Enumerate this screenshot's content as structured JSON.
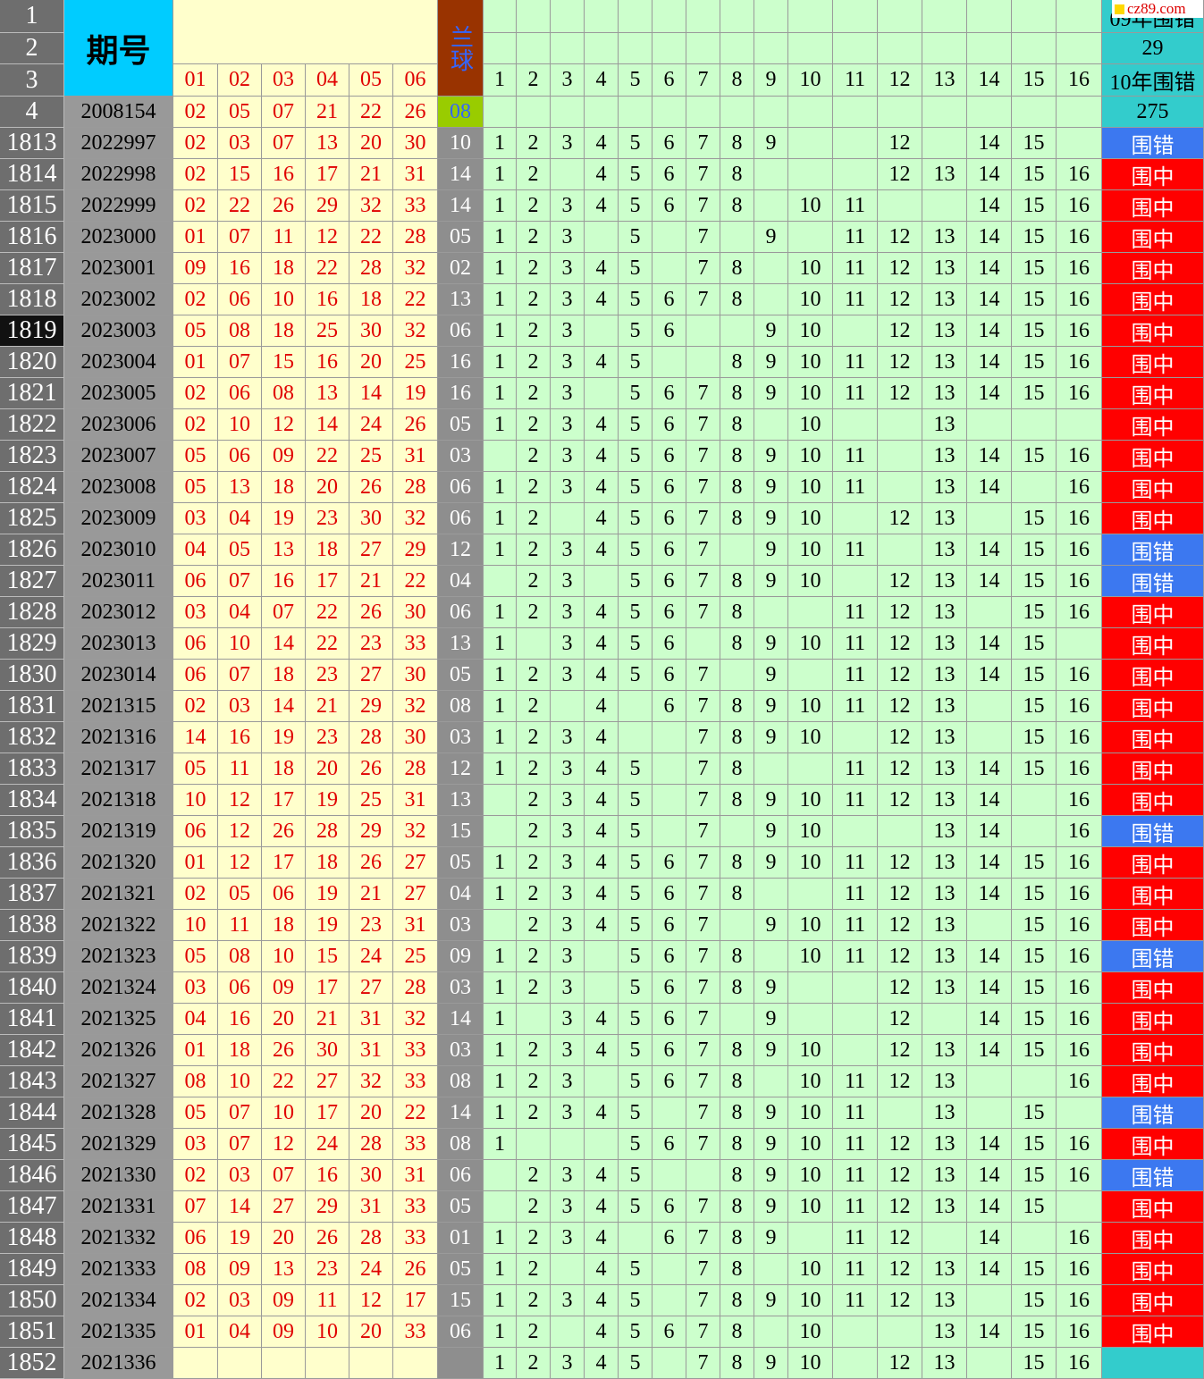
{
  "header": {
    "row_numbers": [
      "1",
      "2",
      "3",
      "4"
    ],
    "issue_label": "期号",
    "red_labels": [
      "01",
      "02",
      "03",
      "04",
      "05",
      "06"
    ],
    "blue_label": "兰球",
    "column_labels": [
      1,
      2,
      3,
      4,
      5,
      6,
      7,
      8,
      9,
      10,
      11,
      12,
      13,
      14,
      15,
      16
    ],
    "stats": [
      "09年围错",
      "29",
      "10年围错",
      "275"
    ],
    "watermark": "cz89.com",
    "ref_row": {
      "issue": "2008154",
      "reds": [
        "02",
        "05",
        "07",
        "21",
        "22",
        "26"
      ],
      "blue": "08"
    }
  },
  "rows": [
    {
      "row": "1813",
      "issue": "2022997",
      "reds": [
        "02",
        "03",
        "07",
        "13",
        "20",
        "30"
      ],
      "blue": "10",
      "grid": [
        1,
        2,
        3,
        4,
        5,
        6,
        7,
        8,
        9,
        null,
        null,
        12,
        null,
        14,
        15,
        null
      ],
      "result": "围错"
    },
    {
      "row": "1814",
      "issue": "2022998",
      "reds": [
        "02",
        "15",
        "16",
        "17",
        "21",
        "31"
      ],
      "blue": "14",
      "grid": [
        1,
        2,
        null,
        4,
        5,
        6,
        7,
        8,
        null,
        null,
        null,
        12,
        13,
        14,
        15,
        16
      ],
      "result": "围中"
    },
    {
      "row": "1815",
      "issue": "2022999",
      "reds": [
        "02",
        "22",
        "26",
        "29",
        "32",
        "33"
      ],
      "blue": "14",
      "grid": [
        1,
        2,
        3,
        4,
        5,
        6,
        7,
        8,
        null,
        10,
        11,
        null,
        null,
        14,
        15,
        16
      ],
      "result": "围中"
    },
    {
      "row": "1816",
      "issue": "2023000",
      "reds": [
        "01",
        "07",
        "11",
        "12",
        "22",
        "28"
      ],
      "blue": "05",
      "grid": [
        1,
        2,
        3,
        null,
        5,
        null,
        7,
        null,
        9,
        null,
        11,
        12,
        13,
        14,
        15,
        16
      ],
      "result": "围中"
    },
    {
      "row": "1817",
      "issue": "2023001",
      "reds": [
        "09",
        "16",
        "18",
        "22",
        "28",
        "32"
      ],
      "blue": "02",
      "grid": [
        1,
        2,
        3,
        4,
        5,
        null,
        7,
        8,
        null,
        10,
        11,
        12,
        13,
        14,
        15,
        16
      ],
      "result": "围中"
    },
    {
      "row": "1818",
      "issue": "2023002",
      "reds": [
        "02",
        "06",
        "10",
        "16",
        "18",
        "22"
      ],
      "blue": "13",
      "grid": [
        1,
        2,
        3,
        4,
        5,
        6,
        7,
        8,
        null,
        10,
        11,
        12,
        13,
        14,
        15,
        16
      ],
      "result": "围中"
    },
    {
      "row": "1819",
      "issue": "2023003",
      "reds": [
        "05",
        "08",
        "18",
        "25",
        "30",
        "32"
      ],
      "blue": "06",
      "grid": [
        1,
        2,
        3,
        null,
        5,
        6,
        null,
        null,
        9,
        10,
        null,
        12,
        13,
        14,
        15,
        16
      ],
      "result": "围中"
    },
    {
      "row": "1820",
      "issue": "2023004",
      "reds": [
        "01",
        "07",
        "15",
        "16",
        "20",
        "25"
      ],
      "blue": "16",
      "grid": [
        1,
        2,
        3,
        4,
        5,
        null,
        null,
        8,
        9,
        10,
        11,
        12,
        13,
        14,
        15,
        16
      ],
      "result": "围中"
    },
    {
      "row": "1821",
      "issue": "2023005",
      "reds": [
        "02",
        "06",
        "08",
        "13",
        "14",
        "19"
      ],
      "blue": "16",
      "grid": [
        1,
        2,
        3,
        null,
        5,
        6,
        7,
        8,
        9,
        10,
        11,
        12,
        13,
        14,
        15,
        16
      ],
      "result": "围中"
    },
    {
      "row": "1822",
      "issue": "2023006",
      "reds": [
        "02",
        "10",
        "12",
        "14",
        "24",
        "26"
      ],
      "blue": "05",
      "grid": [
        1,
        2,
        3,
        4,
        5,
        6,
        7,
        8,
        null,
        10,
        null,
        null,
        13,
        null,
        null,
        null
      ],
      "result": "围中"
    },
    {
      "row": "1823",
      "issue": "2023007",
      "reds": [
        "05",
        "06",
        "09",
        "22",
        "25",
        "31"
      ],
      "blue": "03",
      "grid": [
        null,
        2,
        3,
        4,
        5,
        6,
        7,
        8,
        9,
        10,
        11,
        null,
        13,
        14,
        15,
        16
      ],
      "result": "围中"
    },
    {
      "row": "1824",
      "issue": "2023008",
      "reds": [
        "05",
        "13",
        "18",
        "20",
        "26",
        "28"
      ],
      "blue": "06",
      "grid": [
        1,
        2,
        3,
        4,
        5,
        6,
        7,
        8,
        9,
        10,
        11,
        null,
        13,
        14,
        null,
        16
      ],
      "result": "围中"
    },
    {
      "row": "1825",
      "issue": "2023009",
      "reds": [
        "03",
        "04",
        "19",
        "23",
        "30",
        "32"
      ],
      "blue": "06",
      "grid": [
        1,
        2,
        null,
        4,
        5,
        6,
        7,
        8,
        9,
        10,
        null,
        12,
        13,
        null,
        15,
        16
      ],
      "result": "围中"
    },
    {
      "row": "1826",
      "issue": "2023010",
      "reds": [
        "04",
        "05",
        "13",
        "18",
        "27",
        "29"
      ],
      "blue": "12",
      "grid": [
        1,
        2,
        3,
        4,
        5,
        6,
        7,
        null,
        9,
        10,
        11,
        null,
        13,
        14,
        15,
        16
      ],
      "result": "围错"
    },
    {
      "row": "1827",
      "issue": "2023011",
      "reds": [
        "06",
        "07",
        "16",
        "17",
        "21",
        "22"
      ],
      "blue": "04",
      "grid": [
        null,
        2,
        3,
        null,
        5,
        6,
        7,
        8,
        9,
        10,
        null,
        12,
        13,
        14,
        15,
        16
      ],
      "result": "围错"
    },
    {
      "row": "1828",
      "issue": "2023012",
      "reds": [
        "03",
        "04",
        "07",
        "22",
        "26",
        "30"
      ],
      "blue": "06",
      "grid": [
        1,
        2,
        3,
        4,
        5,
        6,
        7,
        8,
        null,
        null,
        11,
        12,
        13,
        null,
        15,
        16
      ],
      "result": "围中"
    },
    {
      "row": "1829",
      "issue": "2023013",
      "reds": [
        "06",
        "10",
        "14",
        "22",
        "23",
        "33"
      ],
      "blue": "13",
      "grid": [
        1,
        null,
        3,
        4,
        5,
        6,
        null,
        8,
        9,
        10,
        11,
        12,
        13,
        14,
        15,
        null
      ],
      "result": "围中"
    },
    {
      "row": "1830",
      "issue": "2023014",
      "reds": [
        "06",
        "07",
        "18",
        "23",
        "27",
        "30"
      ],
      "blue": "05",
      "grid": [
        1,
        2,
        3,
        4,
        5,
        6,
        7,
        null,
        9,
        null,
        11,
        12,
        13,
        14,
        15,
        16
      ],
      "result": "围中"
    },
    {
      "row": "1831",
      "issue": "2021315",
      "reds": [
        "02",
        "03",
        "14",
        "21",
        "29",
        "32"
      ],
      "blue": "08",
      "grid": [
        1,
        2,
        null,
        4,
        null,
        6,
        7,
        8,
        9,
        10,
        11,
        12,
        13,
        null,
        15,
        16
      ],
      "result": "围中"
    },
    {
      "row": "1832",
      "issue": "2021316",
      "reds": [
        "14",
        "16",
        "19",
        "23",
        "28",
        "30"
      ],
      "blue": "03",
      "grid": [
        1,
        2,
        3,
        4,
        null,
        null,
        7,
        8,
        9,
        10,
        null,
        12,
        13,
        null,
        15,
        16
      ],
      "result": "围中"
    },
    {
      "row": "1833",
      "issue": "2021317",
      "reds": [
        "05",
        "11",
        "18",
        "20",
        "26",
        "28"
      ],
      "blue": "12",
      "grid": [
        1,
        2,
        3,
        4,
        5,
        null,
        7,
        8,
        null,
        null,
        11,
        12,
        13,
        14,
        15,
        16
      ],
      "result": "围中"
    },
    {
      "row": "1834",
      "issue": "2021318",
      "reds": [
        "10",
        "12",
        "17",
        "19",
        "25",
        "31"
      ],
      "blue": "13",
      "grid": [
        null,
        2,
        3,
        4,
        5,
        null,
        7,
        8,
        9,
        10,
        11,
        12,
        13,
        14,
        null,
        16
      ],
      "result": "围中"
    },
    {
      "row": "1835",
      "issue": "2021319",
      "reds": [
        "06",
        "12",
        "26",
        "28",
        "29",
        "32"
      ],
      "blue": "15",
      "grid": [
        null,
        2,
        3,
        4,
        5,
        null,
        7,
        null,
        9,
        10,
        null,
        null,
        13,
        14,
        null,
        16
      ],
      "result": "围错"
    },
    {
      "row": "1836",
      "issue": "2021320",
      "reds": [
        "01",
        "12",
        "17",
        "18",
        "26",
        "27"
      ],
      "blue": "05",
      "grid": [
        1,
        2,
        3,
        4,
        5,
        6,
        7,
        8,
        9,
        10,
        11,
        12,
        13,
        14,
        15,
        16
      ],
      "result": "围中"
    },
    {
      "row": "1837",
      "issue": "2021321",
      "reds": [
        "02",
        "05",
        "06",
        "19",
        "21",
        "27"
      ],
      "blue": "04",
      "grid": [
        1,
        2,
        3,
        4,
        5,
        6,
        7,
        8,
        null,
        null,
        11,
        12,
        13,
        14,
        15,
        16
      ],
      "result": "围中"
    },
    {
      "row": "1838",
      "issue": "2021322",
      "reds": [
        "10",
        "11",
        "18",
        "19",
        "23",
        "31"
      ],
      "blue": "03",
      "grid": [
        null,
        2,
        3,
        4,
        5,
        6,
        7,
        null,
        9,
        10,
        11,
        12,
        13,
        null,
        15,
        16
      ],
      "result": "围中"
    },
    {
      "row": "1839",
      "issue": "2021323",
      "reds": [
        "05",
        "08",
        "10",
        "15",
        "24",
        "25"
      ],
      "blue": "09",
      "grid": [
        1,
        2,
        3,
        null,
        5,
        6,
        7,
        8,
        null,
        10,
        11,
        12,
        13,
        14,
        15,
        16
      ],
      "result": "围错"
    },
    {
      "row": "1840",
      "issue": "2021324",
      "reds": [
        "03",
        "06",
        "09",
        "17",
        "27",
        "28"
      ],
      "blue": "03",
      "grid": [
        1,
        2,
        3,
        null,
        5,
        6,
        7,
        8,
        9,
        null,
        null,
        12,
        13,
        14,
        15,
        16
      ],
      "result": "围中"
    },
    {
      "row": "1841",
      "issue": "2021325",
      "reds": [
        "04",
        "16",
        "20",
        "21",
        "31",
        "32"
      ],
      "blue": "14",
      "grid": [
        1,
        null,
        3,
        4,
        5,
        6,
        7,
        null,
        9,
        null,
        null,
        12,
        null,
        14,
        15,
        16
      ],
      "result": "围中"
    },
    {
      "row": "1842",
      "issue": "2021326",
      "reds": [
        "01",
        "18",
        "26",
        "30",
        "31",
        "33"
      ],
      "blue": "03",
      "grid": [
        1,
        2,
        3,
        4,
        5,
        6,
        7,
        8,
        9,
        10,
        null,
        12,
        13,
        14,
        15,
        16
      ],
      "result": "围中"
    },
    {
      "row": "1843",
      "issue": "2021327",
      "reds": [
        "08",
        "10",
        "22",
        "27",
        "32",
        "33"
      ],
      "blue": "08",
      "grid": [
        1,
        2,
        3,
        null,
        5,
        6,
        7,
        8,
        null,
        10,
        11,
        12,
        13,
        null,
        null,
        16
      ],
      "result": "围中"
    },
    {
      "row": "1844",
      "issue": "2021328",
      "reds": [
        "05",
        "07",
        "10",
        "17",
        "20",
        "22"
      ],
      "blue": "14",
      "grid": [
        1,
        2,
        3,
        4,
        5,
        null,
        7,
        8,
        9,
        10,
        11,
        null,
        13,
        null,
        15,
        null
      ],
      "result": "围错"
    },
    {
      "row": "1845",
      "issue": "2021329",
      "reds": [
        "03",
        "07",
        "12",
        "24",
        "28",
        "33"
      ],
      "blue": "08",
      "grid": [
        1,
        null,
        null,
        null,
        5,
        6,
        7,
        8,
        9,
        10,
        11,
        12,
        13,
        14,
        15,
        16
      ],
      "result": "围中"
    },
    {
      "row": "1846",
      "issue": "2021330",
      "reds": [
        "02",
        "03",
        "07",
        "16",
        "30",
        "31"
      ],
      "blue": "06",
      "grid": [
        null,
        2,
        3,
        4,
        5,
        null,
        null,
        8,
        9,
        10,
        11,
        12,
        13,
        14,
        15,
        16
      ],
      "result": "围错"
    },
    {
      "row": "1847",
      "issue": "2021331",
      "reds": [
        "07",
        "14",
        "27",
        "29",
        "31",
        "33"
      ],
      "blue": "05",
      "grid": [
        null,
        2,
        3,
        4,
        5,
        6,
        7,
        8,
        9,
        10,
        11,
        12,
        13,
        14,
        15,
        null
      ],
      "result": "围中"
    },
    {
      "row": "1848",
      "issue": "2021332",
      "reds": [
        "06",
        "19",
        "20",
        "26",
        "28",
        "33"
      ],
      "blue": "01",
      "grid": [
        1,
        2,
        3,
        4,
        null,
        6,
        7,
        8,
        9,
        null,
        11,
        12,
        null,
        14,
        null,
        16
      ],
      "result": "围中"
    },
    {
      "row": "1849",
      "issue": "2021333",
      "reds": [
        "08",
        "09",
        "13",
        "23",
        "24",
        "26"
      ],
      "blue": "05",
      "grid": [
        1,
        2,
        null,
        4,
        5,
        null,
        7,
        8,
        null,
        10,
        11,
        12,
        13,
        14,
        15,
        16
      ],
      "result": "围中"
    },
    {
      "row": "1850",
      "issue": "2021334",
      "reds": [
        "02",
        "03",
        "09",
        "11",
        "12",
        "17"
      ],
      "blue": "15",
      "grid": [
        1,
        2,
        3,
        4,
        5,
        null,
        7,
        8,
        9,
        10,
        11,
        12,
        13,
        null,
        15,
        16
      ],
      "result": "围中"
    },
    {
      "row": "1851",
      "issue": "2021335",
      "reds": [
        "01",
        "04",
        "09",
        "10",
        "20",
        "33"
      ],
      "blue": "06",
      "grid": [
        1,
        2,
        null,
        4,
        5,
        6,
        7,
        8,
        null,
        10,
        null,
        null,
        13,
        14,
        15,
        16
      ],
      "result": "围中"
    },
    {
      "row": "1852",
      "issue": "2021336",
      "reds": [
        null,
        null,
        null,
        null,
        null,
        null
      ],
      "blue": null,
      "grid": [
        1,
        2,
        3,
        4,
        5,
        null,
        7,
        8,
        9,
        10,
        null,
        12,
        13,
        null,
        15,
        16
      ],
      "result": null
    }
  ],
  "selected_row": "1819",
  "hit_label": "围中"
}
